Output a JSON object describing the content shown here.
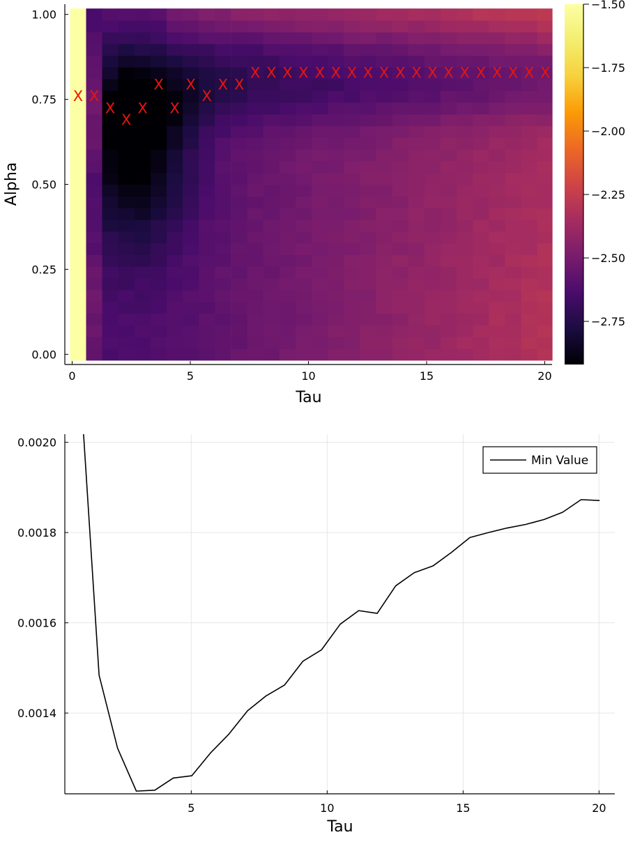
{
  "chart_data": [
    {
      "type": "heatmap",
      "title": "",
      "xlabel": "Tau",
      "ylabel": "Alpha",
      "xlim": [
        -0.31,
        20.31
      ],
      "ylim": [
        -0.03,
        1.03
      ],
      "xticks": [
        0,
        5,
        10,
        15,
        20
      ],
      "yticks": [
        0.0,
        0.25,
        0.5,
        0.75,
        1.0
      ],
      "xtick_labels": [
        "0",
        "5",
        "10",
        "15",
        "20"
      ],
      "ytick_labels": [
        "0.00",
        "0.25",
        "0.50",
        "0.75",
        "1.00"
      ],
      "colormap": "inferno",
      "colorbar": {
        "range": [
          -2.92,
          -1.5
        ],
        "ticks": [
          -2.75,
          -2.5,
          -2.25,
          -2.0,
          -1.75,
          -1.5
        ],
        "tick_labels": [
          "-2.75",
          "-2.50",
          "-2.25",
          "-2.00",
          "-1.75",
          "-1.50"
        ]
      },
      "tau_values": [
        0.25,
        0.93,
        1.61,
        2.29,
        2.98,
        3.66,
        4.34,
        5.02,
        5.7,
        6.38,
        7.07,
        7.75,
        8.43,
        9.11,
        9.79,
        10.48,
        11.16,
        11.84,
        12.52,
        13.2,
        13.89,
        14.57,
        15.25,
        15.93,
        16.61,
        17.3,
        17.98,
        18.66,
        19.34,
        20.02
      ],
      "alpha_grid": {
        "start": 0.0,
        "stop": 1.0,
        "count": 30
      },
      "minima_markers": {
        "symbol": "X",
        "color": "#e8160c",
        "alpha": [
          0.759,
          0.759,
          0.724,
          0.69,
          0.724,
          0.793,
          0.724,
          0.793,
          0.759,
          0.793,
          0.793,
          0.828,
          0.828,
          0.828,
          0.828,
          0.828,
          0.828,
          0.828,
          0.828,
          0.828,
          0.828,
          0.828,
          0.828,
          0.828,
          0.828,
          0.828,
          0.828,
          0.828,
          0.828,
          0.828
        ]
      }
    },
    {
      "type": "line",
      "title": "",
      "xlabel": "Tau",
      "ylabel": "",
      "xlim": [
        0.35,
        20.58
      ],
      "ylim": [
        0.001221,
        0.002018
      ],
      "xticks": [
        5,
        10,
        15,
        20
      ],
      "yticks": [
        0.0014,
        0.0016,
        0.0018,
        0.002
      ],
      "xtick_labels": [
        "5",
        "10",
        "15",
        "20"
      ],
      "ytick_labels": [
        "0.0014",
        "0.0016",
        "0.0018",
        "0.0020"
      ],
      "grid": true,
      "legend_position": "top-right",
      "series": [
        {
          "name": "Min Value",
          "color": "#000000",
          "x": [
            0.93,
            1.61,
            2.29,
            2.98,
            3.66,
            4.34,
            5.02,
            5.7,
            6.38,
            7.07,
            7.75,
            8.43,
            9.11,
            9.79,
            10.48,
            11.16,
            11.84,
            12.52,
            13.2,
            13.89,
            14.57,
            15.25,
            15.93,
            16.61,
            17.3,
            17.98,
            18.66,
            19.34,
            20.02
          ],
          "y": [
            0.00212,
            0.001484,
            0.001322,
            0.001227,
            0.001229,
            0.001256,
            0.001261,
            0.001311,
            0.001353,
            0.001405,
            0.001438,
            0.001462,
            0.001515,
            0.00154,
            0.001597,
            0.001627,
            0.001621,
            0.001682,
            0.001711,
            0.001726,
            0.001756,
            0.001789,
            0.0018,
            0.00181,
            0.001818,
            0.001829,
            0.001845,
            0.001873,
            0.001871
          ]
        }
      ]
    }
  ]
}
